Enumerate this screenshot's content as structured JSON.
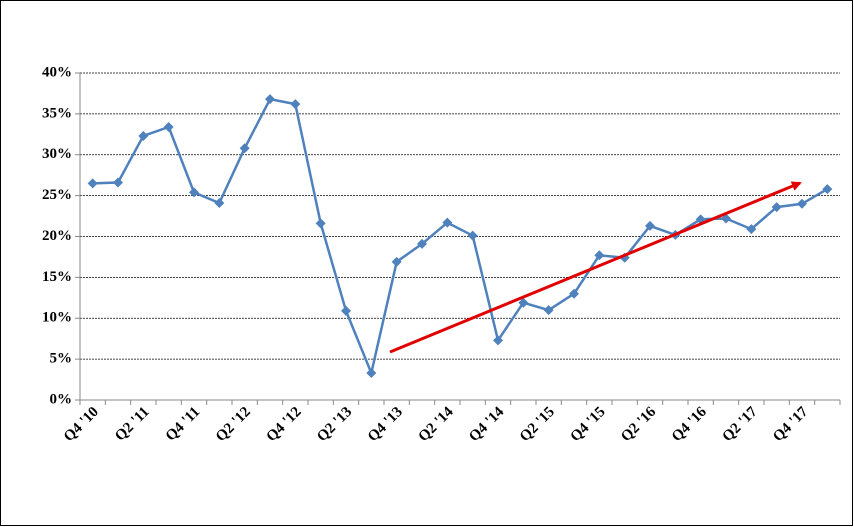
{
  "chart_data": {
    "type": "line",
    "categories": [
      "Q4 '10",
      null,
      "Q2 '11",
      null,
      "Q4 '11",
      null,
      "Q2 '12",
      null,
      "Q4 '12",
      null,
      "Q2 '13",
      null,
      "Q4 '13",
      null,
      "Q2 '14",
      null,
      "Q4 '14",
      null,
      "Q2 '15",
      null,
      "Q4 '15",
      null,
      "Q2 '16",
      null,
      "Q4 '16",
      null,
      "Q2 '17",
      null,
      "Q4 '17",
      null
    ],
    "series": [
      {
        "color": "#4f81bd",
        "values": [
          26.5,
          26.6,
          32.3,
          33.4,
          25.4,
          24.1,
          30.8,
          36.8,
          36.2,
          21.6,
          10.9,
          3.3,
          16.9,
          19.1,
          21.7,
          20.1,
          7.3,
          11.9,
          11.0,
          13.0,
          17.7,
          17.4,
          21.3,
          20.2,
          22.1,
          22.2,
          20.9,
          23.6,
          24.0,
          25.8
        ]
      }
    ],
    "ylim": [
      0,
      40
    ],
    "yticks": [
      {
        "value": 0,
        "label": "0%"
      },
      {
        "value": 5,
        "label": "5%"
      },
      {
        "value": 10,
        "label": "10%"
      },
      {
        "value": 15,
        "label": "15%"
      },
      {
        "value": 20,
        "label": "20%"
      },
      {
        "value": 25,
        "label": "25%"
      },
      {
        "value": 30,
        "label": "30%"
      },
      {
        "value": 35,
        "label": "35%"
      },
      {
        "value": 40,
        "label": "40%"
      }
    ],
    "grid": true
  }
}
